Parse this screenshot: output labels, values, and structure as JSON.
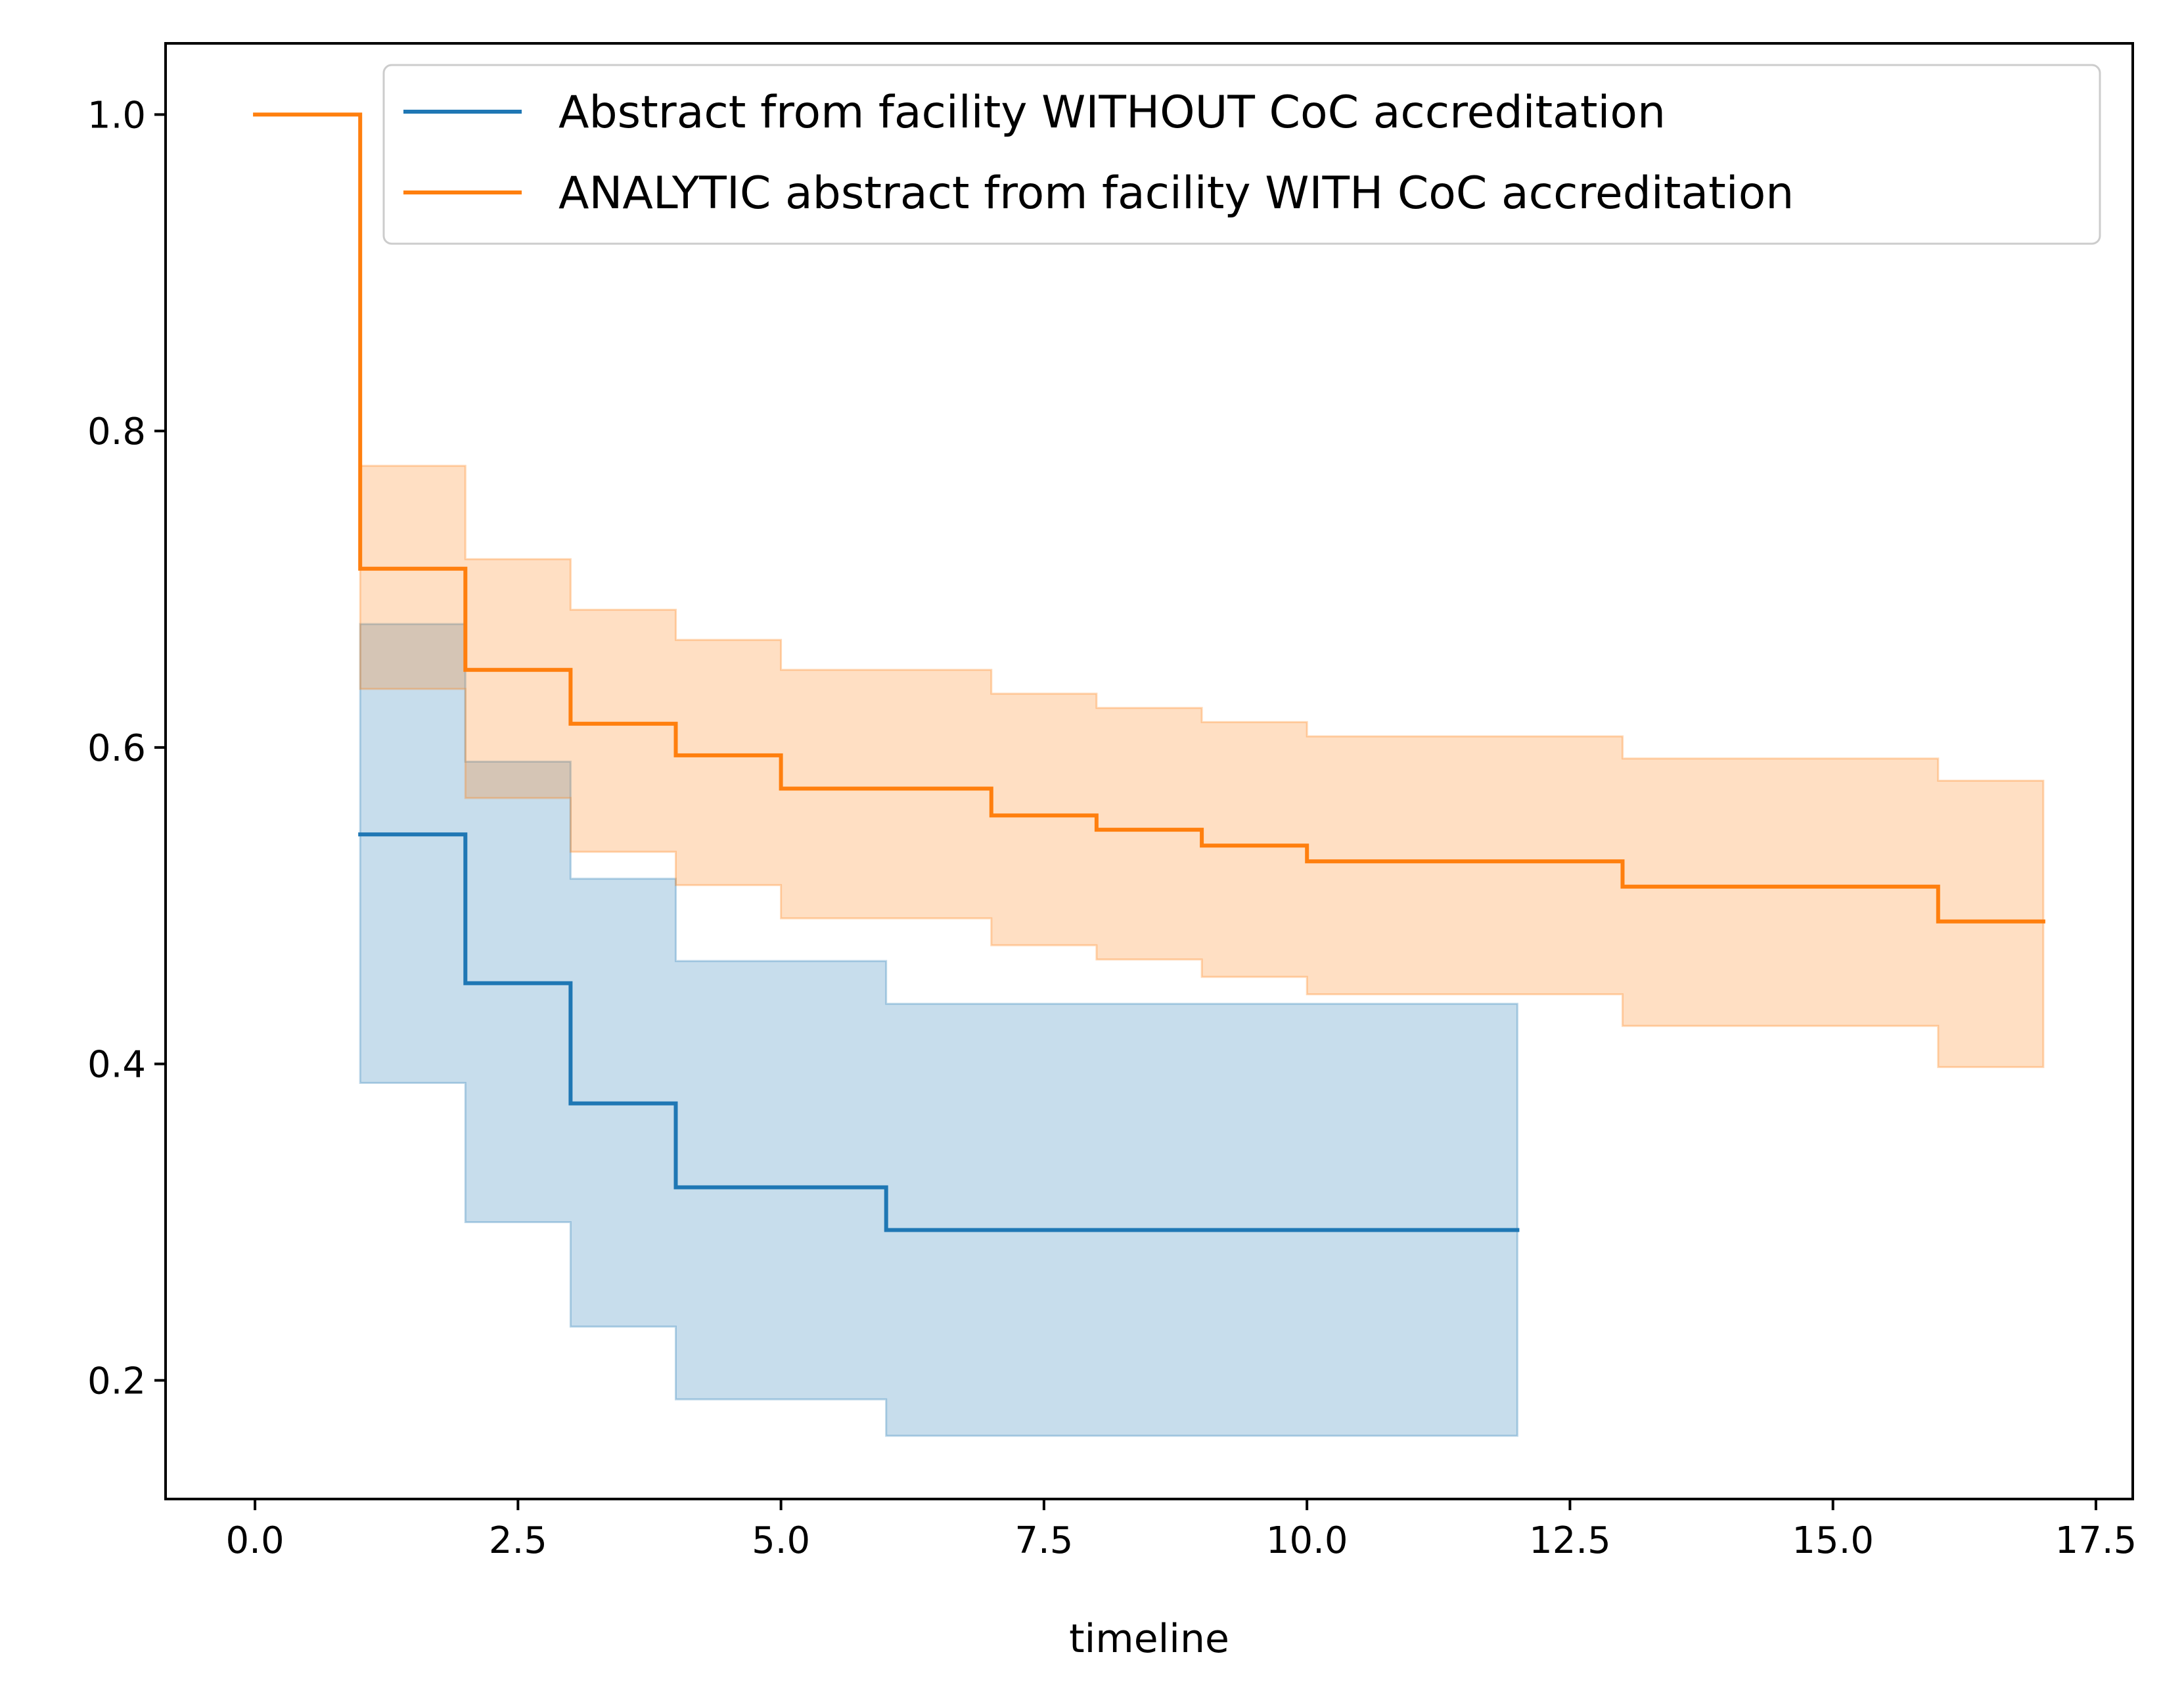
{
  "chart_data": {
    "type": "line",
    "step": true,
    "title": "",
    "xlabel": "timeline",
    "ylabel": "",
    "xlim": [
      -0.85,
      17.85
    ],
    "ylim": [
      0.125,
      1.045
    ],
    "xticks": [
      0.0,
      2.5,
      5.0,
      7.5,
      10.0,
      12.5,
      15.0,
      17.5
    ],
    "xtick_labels": [
      "0.0",
      "2.5",
      "5.0",
      "7.5",
      "10.0",
      "12.5",
      "15.0",
      "17.5"
    ],
    "yticks": [
      0.2,
      0.4,
      0.6,
      0.8,
      1.0
    ],
    "ytick_labels": [
      "0.2",
      "0.4",
      "0.6",
      "0.8",
      "1.0"
    ],
    "grid": false,
    "legend_position": "top-right",
    "series": [
      {
        "name": "Abstract from facility WITHOUT CoC accreditation",
        "color": "#1f77b4",
        "x": [
          1,
          2,
          3,
          4,
          6,
          12
        ],
        "y": [
          0.545,
          0.451,
          0.375,
          0.322,
          0.295,
          0.295
        ],
        "ci_lower": [
          0.388,
          0.3,
          0.234,
          0.188,
          0.165,
          0.165
        ],
        "ci_upper": [
          0.678,
          0.591,
          0.517,
          0.465,
          0.438,
          0.438
        ]
      },
      {
        "name": "ANALYTIC abstract from facility WITH CoC accreditation",
        "color": "#ff7f0e",
        "x": [
          0,
          1,
          2,
          3,
          4,
          5,
          7,
          8,
          9,
          10,
          13,
          16,
          17
        ],
        "y": [
          1.0,
          0.713,
          0.649,
          0.615,
          0.595,
          0.574,
          0.557,
          0.548,
          0.538,
          0.528,
          0.512,
          0.49,
          0.49
        ],
        "ci_lower": [
          1.0,
          0.637,
          0.568,
          0.534,
          0.513,
          0.492,
          0.475,
          0.466,
          0.455,
          0.444,
          0.424,
          0.398,
          0.398
        ],
        "ci_upper": [
          1.0,
          0.778,
          0.719,
          0.687,
          0.668,
          0.649,
          0.634,
          0.625,
          0.616,
          0.607,
          0.593,
          0.579,
          0.579
        ]
      }
    ]
  }
}
